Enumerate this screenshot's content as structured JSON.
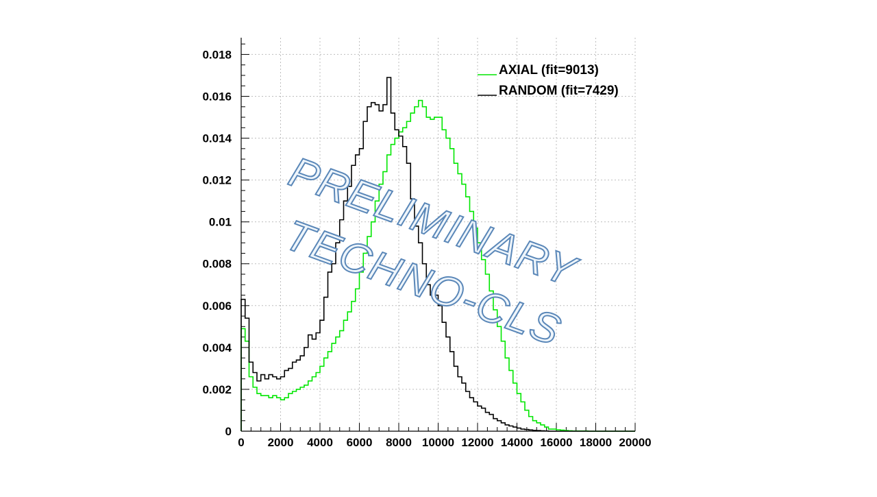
{
  "chart_data": {
    "type": "histogram",
    "title": "",
    "xlabel": "",
    "ylabel": "",
    "xlim": [
      0,
      20000
    ],
    "ylim": [
      0,
      0.0188
    ],
    "x_ticks": [
      0,
      2000,
      4000,
      6000,
      8000,
      10000,
      12000,
      14000,
      16000,
      18000,
      20000
    ],
    "x_tick_labels": [
      "0",
      "2000",
      "4000",
      "6000",
      "8000",
      "10000",
      "12000",
      "14000",
      "16000",
      "18000",
      "20000"
    ],
    "y_ticks": [
      0,
      0.002,
      0.004,
      0.006,
      0.008,
      0.01,
      0.012,
      0.014,
      0.016,
      0.018
    ],
    "y_tick_labels": [
      "0",
      "0.002",
      "0.004",
      "0.006",
      "0.008",
      "0.01",
      "0.012",
      "0.014",
      "0.016",
      "0.018"
    ],
    "grid": true,
    "legend_position": "top-right",
    "bin_width": 200,
    "x": [
      0,
      200,
      400,
      600,
      800,
      1000,
      1200,
      1400,
      1600,
      1800,
      2000,
      2200,
      2400,
      2600,
      2800,
      3000,
      3200,
      3400,
      3600,
      3800,
      4000,
      4200,
      4400,
      4600,
      4800,
      5000,
      5200,
      5400,
      5600,
      5800,
      6000,
      6200,
      6400,
      6600,
      6800,
      7000,
      7200,
      7400,
      7600,
      7800,
      8000,
      8200,
      8400,
      8600,
      8800,
      9000,
      9200,
      9400,
      9600,
      9800,
      10000,
      10200,
      10400,
      10600,
      10800,
      11000,
      11200,
      11400,
      11600,
      11800,
      12000,
      12200,
      12400,
      12600,
      12800,
      13000,
      13200,
      13400,
      13600,
      13800,
      14000,
      14200,
      14400,
      14600,
      14800,
      15000,
      15200,
      15400,
      15600,
      15800,
      16000,
      16200,
      16400,
      16600,
      16800,
      17000,
      17200,
      17400,
      17600,
      17800,
      18000,
      18200,
      18400,
      18600,
      18800,
      19000,
      19200,
      19400,
      19600,
      19800
    ],
    "series": [
      {
        "name": "AXIAL (fit=9013)",
        "color": "#00e600",
        "values": [
          0.0049,
          0.0043,
          0.0026,
          0.0021,
          0.0018,
          0.0017,
          0.0017,
          0.0016,
          0.0017,
          0.0016,
          0.0015,
          0.0016,
          0.0018,
          0.0019,
          0.002,
          0.0021,
          0.0022,
          0.0024,
          0.0026,
          0.0028,
          0.0031,
          0.0035,
          0.0038,
          0.0042,
          0.0045,
          0.0048,
          0.0053,
          0.0057,
          0.0062,
          0.0068,
          0.0076,
          0.0085,
          0.0093,
          0.01,
          0.011,
          0.0118,
          0.0124,
          0.0132,
          0.0137,
          0.014,
          0.0143,
          0.0145,
          0.0148,
          0.0152,
          0.0155,
          0.0158,
          0.0155,
          0.015,
          0.0149,
          0.015,
          0.015,
          0.0144,
          0.014,
          0.0135,
          0.0128,
          0.0123,
          0.0118,
          0.0112,
          0.0105,
          0.0097,
          0.009,
          0.0082,
          0.0075,
          0.0067,
          0.0058,
          0.005,
          0.0043,
          0.0035,
          0.0029,
          0.0023,
          0.0018,
          0.0014,
          0.001,
          0.0007,
          0.0005,
          0.0004,
          0.0003,
          0.0002,
          0.0001,
          0.0001,
          7e-05,
          5e-05,
          3e-05,
          2e-05,
          1e-05,
          1e-05,
          1e-05,
          1e-05,
          0,
          0,
          0,
          0,
          0,
          0,
          0,
          0,
          0,
          0,
          0,
          0
        ]
      },
      {
        "name": "RANDOM (fit=7429)",
        "color": "#000000",
        "values": [
          0.0063,
          0.0054,
          0.0033,
          0.0028,
          0.0024,
          0.0027,
          0.0025,
          0.0027,
          0.0026,
          0.0025,
          0.0026,
          0.0029,
          0.003,
          0.0033,
          0.0034,
          0.0036,
          0.004,
          0.0046,
          0.0044,
          0.0047,
          0.0053,
          0.0064,
          0.0076,
          0.008,
          0.009,
          0.0101,
          0.011,
          0.0117,
          0.0127,
          0.0132,
          0.0135,
          0.0148,
          0.0155,
          0.0157,
          0.0156,
          0.0153,
          0.0156,
          0.0169,
          0.0152,
          0.0144,
          0.0141,
          0.0136,
          0.0128,
          0.0111,
          0.0098,
          0.009,
          0.008,
          0.007,
          0.0065,
          0.0065,
          0.006,
          0.0052,
          0.0045,
          0.0038,
          0.0031,
          0.0026,
          0.0023,
          0.0019,
          0.0016,
          0.0014,
          0.0012,
          0.0011,
          0.0009,
          0.0008,
          0.0006,
          0.0005,
          0.0004,
          0.0003,
          0.00025,
          0.0002,
          0.00015,
          0.0001,
          8e-05,
          6e-05,
          4e-05,
          3e-05,
          2e-05,
          1e-05,
          0,
          0,
          0,
          0,
          0,
          0,
          0,
          0,
          0,
          0,
          0,
          0,
          0,
          0,
          0,
          0,
          0,
          0,
          0,
          0,
          0,
          0
        ]
      }
    ],
    "annotations": [
      "PRELIMINARY",
      "TECHNO-CLS"
    ]
  }
}
